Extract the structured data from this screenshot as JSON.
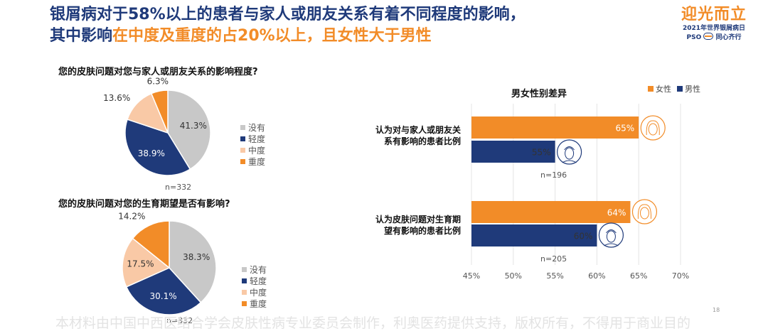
{
  "title": {
    "line1": "银屑病对于58%以上的患者与家人或朋友关系有着不同程度的影响，",
    "line2_prefix": "其中影响",
    "line2_highlight": "在中度及重度的占20%以上，且女性大于男性"
  },
  "logo": {
    "name": "迎光而立",
    "subtitle": "2021年世界银屑病日",
    "pso": "PSO",
    "badge_text": "UNITED WITH PSO",
    "slogan": "同心齐行"
  },
  "colors": {
    "none": "#c8c8c8",
    "mild": "#1f3a7a",
    "moderate": "#f9c9a6",
    "severe": "#f28c28",
    "female": "#f28c28",
    "male": "#1f3a7a",
    "title_blue": "#1f3a7a"
  },
  "pie1": {
    "question": "您的皮肤问题对您与家人或朋友关系的影响程度?",
    "n_label": "n=332"
  },
  "pie2": {
    "question": "您的皮肤问题对您的生育期望是否有影响?",
    "n_label": "n=332"
  },
  "legend_labels": [
    "没有",
    "轻度",
    "中度",
    "重度"
  ],
  "bar": {
    "title": "男女性别差异",
    "legend": [
      "女性",
      "男性"
    ],
    "groups": [
      {
        "label_line1": "认为对与家人或朋友关",
        "label_line2": "系有影响的患者比例",
        "n_label": "n=196"
      },
      {
        "label_line1": "认为皮肤问题对生育期",
        "label_line2": "望有影响的患者比例",
        "n_label": "n=205"
      }
    ]
  },
  "chart_data": [
    {
      "type": "pie",
      "title": "您的皮肤问题对您与家人或朋友关系的影响程度?",
      "categories": [
        "没有",
        "轻度",
        "中度",
        "重度"
      ],
      "values": [
        41.3,
        38.9,
        13.6,
        6.3
      ],
      "labels": [
        "41.3%",
        "38.9%",
        "13.6%",
        "6.3%"
      ],
      "n": "n=332"
    },
    {
      "type": "pie",
      "title": "您的皮肤问题对您的生育期望是否有影响?",
      "categories": [
        "没有",
        "轻度",
        "中度",
        "重度"
      ],
      "values": [
        38.3,
        30.1,
        17.5,
        14.2
      ],
      "labels": [
        "38.3%",
        "30.1%",
        "17.5%",
        "14.2%"
      ],
      "n": "n=332"
    },
    {
      "type": "bar",
      "orientation": "horizontal",
      "title": "男女性别差异",
      "categories": [
        "认为对与家人或朋友关系有影响的患者比例",
        "认为皮肤问题对生育期望有影响的患者比例"
      ],
      "series": [
        {
          "name": "女性",
          "values": [
            65,
            64
          ],
          "labels": [
            "65%",
            "64%"
          ]
        },
        {
          "name": "男性",
          "values": [
            55,
            60
          ],
          "labels": [
            "55%",
            "60%"
          ]
        }
      ],
      "xlim": [
        45,
        70
      ],
      "xticks": [
        "45%",
        "50%",
        "55%",
        "60%",
        "65%",
        "70%"
      ],
      "grid": true,
      "legend_position": "top-right"
    }
  ],
  "footer": "本材料由中国中西医结合学会皮肤性病专业委员会制作，利奥医药提供支持，版权所有，不得用于商业目的",
  "page_number": "18"
}
